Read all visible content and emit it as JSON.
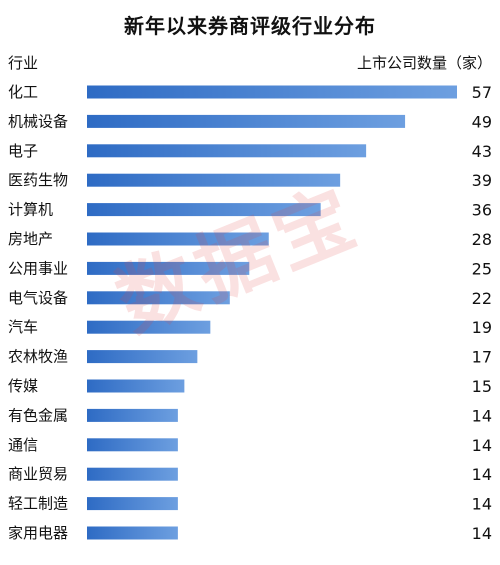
{
  "chart_data": {
    "type": "bar",
    "orientation": "horizontal",
    "title": "新年以来券商评级行业分布",
    "category_header": "行业",
    "value_header": "上市公司数量（家）",
    "watermark": "数据宝",
    "categories": [
      "化工",
      "机械设备",
      "电子",
      "医药生物",
      "计算机",
      "房地产",
      "公用事业",
      "电气设备",
      "汽车",
      "农林牧渔",
      "传媒",
      "有色金属",
      "通信",
      "商业贸易",
      "轻工制造",
      "家用电器"
    ],
    "values": [
      57,
      49,
      43,
      39,
      36,
      28,
      25,
      22,
      19,
      17,
      15,
      14,
      14,
      14,
      14,
      14
    ],
    "bar_color_start": "#2e6bc4",
    "bar_color_end": "#6d9fe0",
    "xlim": [
      0,
      57
    ],
    "grid": false
  }
}
